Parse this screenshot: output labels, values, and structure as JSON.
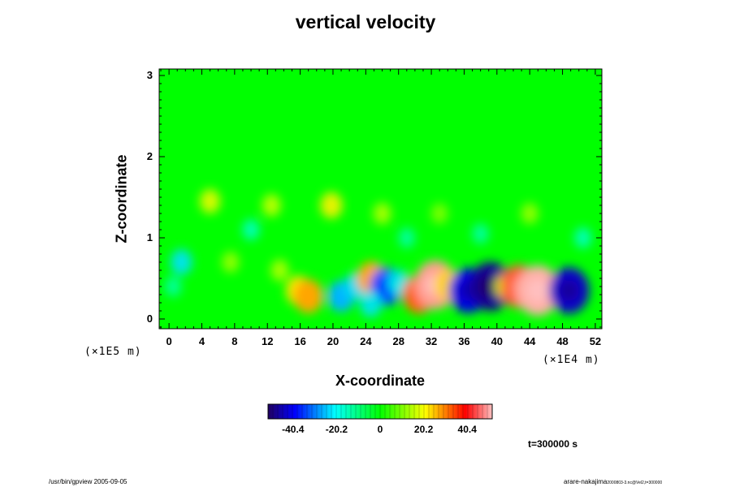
{
  "chart_data": {
    "type": "heatmap",
    "title": "vertical velocity",
    "xlabel": "X-coordinate",
    "ylabel": "Z-coordinate",
    "x_ticks": [
      "0",
      "4",
      "8",
      "12",
      "16",
      "20",
      "24",
      "28",
      "32",
      "36",
      "40",
      "44",
      "48",
      "52"
    ],
    "x_tick_values": [
      0,
      4,
      8,
      12,
      16,
      20,
      24,
      28,
      32,
      36,
      40,
      44,
      48,
      52
    ],
    "y_ticks": [
      "0",
      "1",
      "2",
      "3"
    ],
    "y_tick_values": [
      0,
      1,
      2,
      3
    ],
    "x_range": [
      -1.2,
      52.8
    ],
    "y_range": [
      -0.12,
      3.08
    ],
    "x_unit": "(×1E4 m)",
    "y_unit": "(×1E5 m)",
    "colorbar": {
      "ticks": [
        "-40.4",
        "-20.2",
        "0",
        "20.2",
        "40.4"
      ],
      "tick_values": [
        -40.4,
        -20.2,
        0,
        20.2,
        40.4
      ],
      "range": [
        -52,
        52
      ]
    },
    "features": [
      {
        "x": 15.8,
        "z": 0.35,
        "value": 20
      },
      {
        "x": 17.0,
        "z": 0.28,
        "value": 26
      },
      {
        "x": 21.0,
        "z": 0.28,
        "value": -22
      },
      {
        "x": 22.7,
        "z": 0.4,
        "value": -16
      },
      {
        "x": 24.7,
        "z": 0.5,
        "value": 26
      },
      {
        "x": 26.5,
        "z": 0.4,
        "value": -32
      },
      {
        "x": 28.0,
        "z": 0.45,
        "value": -14
      },
      {
        "x": 30.5,
        "z": 0.3,
        "value": 32
      },
      {
        "x": 32.5,
        "z": 0.42,
        "value": 48
      },
      {
        "x": 34.0,
        "z": 0.42,
        "value": 22
      },
      {
        "x": 36.5,
        "z": 0.35,
        "value": -42
      },
      {
        "x": 39.2,
        "z": 0.4,
        "value": -48
      },
      {
        "x": 41.0,
        "z": 0.4,
        "value": 12
      },
      {
        "x": 42.7,
        "z": 0.4,
        "value": 40
      },
      {
        "x": 45.0,
        "z": 0.35,
        "value": 50
      },
      {
        "x": 48.8,
        "z": 0.35,
        "value": -44
      },
      {
        "x": 24.6,
        "z": 0.18,
        "value": -14
      },
      {
        "x": 13.5,
        "z": 0.6,
        "value": 8
      },
      {
        "x": 7.5,
        "z": 0.7,
        "value": 7
      },
      {
        "x": 1.5,
        "z": 0.7,
        "value": -14
      },
      {
        "x": 0.5,
        "z": 0.4,
        "value": -6
      },
      {
        "x": 5.0,
        "z": 1.45,
        "value": 12
      },
      {
        "x": 19.8,
        "z": 1.4,
        "value": 15
      },
      {
        "x": 26.0,
        "z": 1.3,
        "value": 8
      },
      {
        "x": 12.5,
        "z": 1.4,
        "value": 9
      },
      {
        "x": 33.0,
        "z": 1.3,
        "value": 6
      },
      {
        "x": 44.0,
        "z": 1.3,
        "value": 7
      },
      {
        "x": 10.0,
        "z": 1.1,
        "value": -7
      },
      {
        "x": 38.0,
        "z": 1.05,
        "value": -6
      },
      {
        "x": 29.0,
        "z": 1.0,
        "value": -6
      },
      {
        "x": 50.5,
        "z": 1.0,
        "value": -7
      }
    ]
  },
  "time_label": "t=300000 s",
  "footer_left": "/usr/bin/gpview 2005-09-05",
  "footer_right": "arare-nakajima",
  "footer_right_small": "2000803-3.nc@Vel2,t=300000",
  "colors": {
    "frame": "#000000",
    "background_field": "#00ff00"
  }
}
